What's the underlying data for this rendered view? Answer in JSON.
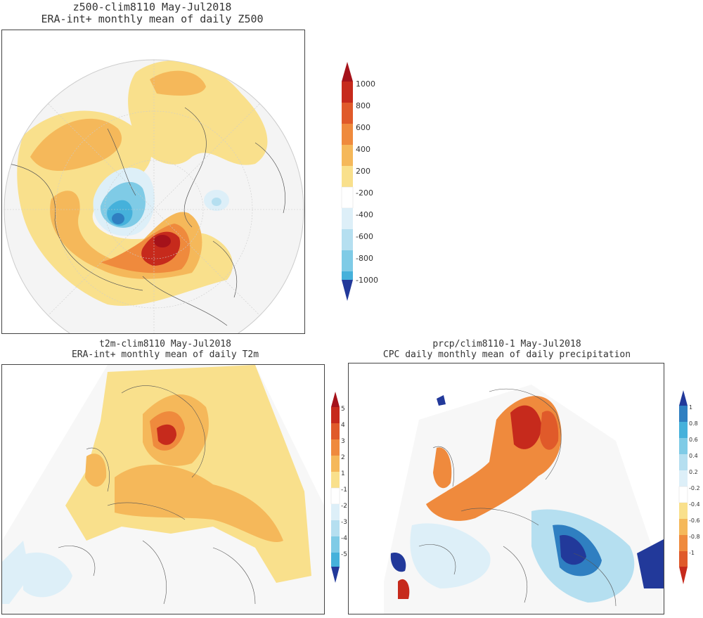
{
  "z500": {
    "title_line1": "z500-clim8110 May-Jul2018",
    "title_line2": "ERA-int+ monthly mean of daily Z500",
    "colorbar_labels": [
      "1000",
      "800",
      "600",
      "400",
      "200",
      "-200",
      "-400",
      "-600",
      "-800",
      "-1000"
    ]
  },
  "t2m": {
    "title_line1": "t2m-clim8110 May-Jul2018",
    "title_line2": "ERA-int+ monthly mean of daily T2m",
    "colorbar_labels": [
      "5",
      "4",
      "3",
      "2",
      "1",
      "-1",
      "-2",
      "-3",
      "-4",
      "-5"
    ]
  },
  "prcp": {
    "title_line1": "prcp/clim8110-1 May-Jul2018",
    "title_line2": "CPC daily monthly mean of daily precipitation",
    "colorbar_labels": [
      "1",
      "0.8",
      "0.6",
      "0.4",
      "0.2",
      "-0.2",
      "-0.4",
      "-0.6",
      "-0.8",
      "-1"
    ]
  },
  "colors": {
    "warm": [
      "#f9e08c",
      "#f5b85a",
      "#ef8a3d",
      "#e05a2a",
      "#c62a1c",
      "#a5121a"
    ],
    "cool": [
      "#ddeff8",
      "#b5dff0",
      "#7fcbe6",
      "#45b1db",
      "#2f7fc1",
      "#22399a"
    ],
    "neutral": "#ffffff"
  }
}
